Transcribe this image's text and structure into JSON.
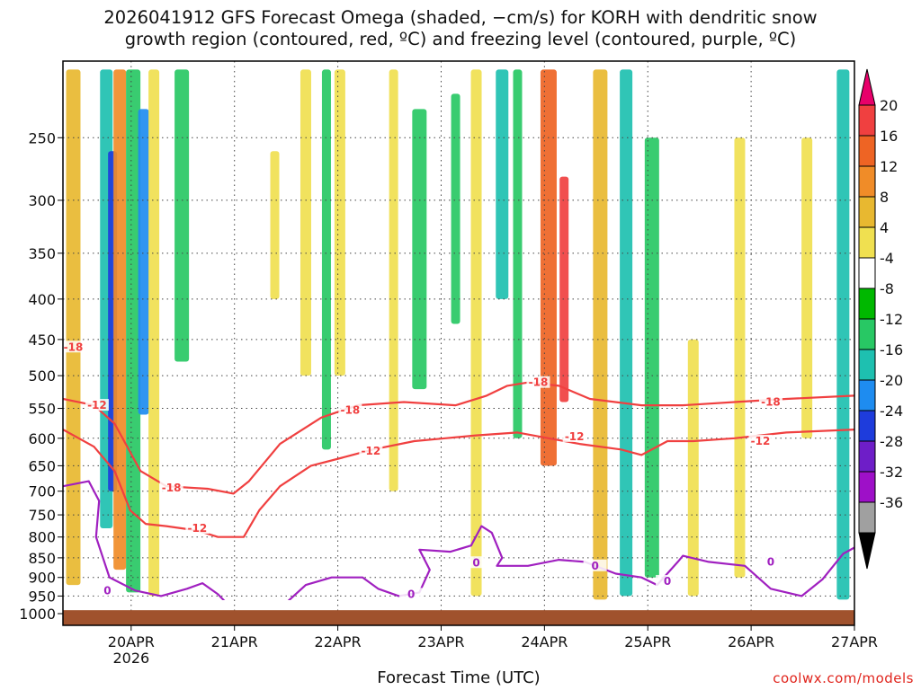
{
  "title_line1": "2026041912 GFS Forecast Omega (shaded, −cm/s) for KORH with dendritic snow",
  "title_line2": "growth region (contoured, red, ºC) and freezing level (contoured, purple, ºC)",
  "credit": "coolwx.com/models",
  "chart_data": {
    "type": "heatmap",
    "xlabel": "Forecast Time (UTC)",
    "ylabel": "",
    "x_ticks": [
      "20APR",
      "21APR",
      "22APR",
      "23APR",
      "24APR",
      "25APR",
      "26APR",
      "27APR"
    ],
    "x_tick_days": [
      0.66,
      1.66,
      2.66,
      3.66,
      4.66,
      5.66,
      6.66,
      7.66
    ],
    "x_sublabel": "2026",
    "xlim_days": [
      0,
      7.66
    ],
    "y_ticks": [
      250,
      300,
      350,
      400,
      450,
      500,
      550,
      600,
      650,
      700,
      750,
      800,
      850,
      900,
      950,
      1000
    ],
    "ylim_hpa": [
      200,
      1000
    ],
    "ground_level_hpa": 990,
    "colorbar": {
      "labels": [
        20,
        16,
        12,
        8,
        4,
        -4,
        -8,
        -12,
        -16,
        -20,
        -24,
        -28,
        -32,
        -36
      ],
      "colors": [
        "#e8006a",
        "#f04040",
        "#ee6424",
        "#f08c28",
        "#e8b830",
        "#f0e050",
        "#ffffff",
        "#00b800",
        "#28c864",
        "#1ec0b0",
        "#1e8cf0",
        "#1e3cdc",
        "#6e1ec8",
        "#9e10c8",
        "#a0a0a0",
        "#000000"
      ]
    },
    "omega_bands": [
      {
        "day": 0.1,
        "p_top": 205,
        "p_bot": 920,
        "value": 8
      },
      {
        "day": 0.42,
        "p_top": 205,
        "p_bot": 780,
        "value": -12
      },
      {
        "day": 0.48,
        "p_top": 260,
        "p_bot": 700,
        "value": -20
      },
      {
        "day": 0.55,
        "p_top": 205,
        "p_bot": 880,
        "value": 12
      },
      {
        "day": 0.68,
        "p_top": 205,
        "p_bot": 940,
        "value": -8
      },
      {
        "day": 0.78,
        "p_top": 230,
        "p_bot": 560,
        "value": -16
      },
      {
        "day": 0.88,
        "p_top": 205,
        "p_bot": 950,
        "value": 6
      },
      {
        "day": 1.15,
        "p_top": 205,
        "p_bot": 480,
        "value": -8
      },
      {
        "day": 2.05,
        "p_top": 260,
        "p_bot": 400,
        "value": 5
      },
      {
        "day": 2.35,
        "p_top": 205,
        "p_bot": 500,
        "value": 6
      },
      {
        "day": 2.55,
        "p_top": 205,
        "p_bot": 620,
        "value": -10
      },
      {
        "day": 2.68,
        "p_top": 205,
        "p_bot": 500,
        "value": 6
      },
      {
        "day": 3.2,
        "p_top": 205,
        "p_bot": 700,
        "value": 5
      },
      {
        "day": 3.45,
        "p_top": 230,
        "p_bot": 520,
        "value": -8
      },
      {
        "day": 3.8,
        "p_top": 220,
        "p_bot": 430,
        "value": -10
      },
      {
        "day": 4.0,
        "p_top": 205,
        "p_bot": 950,
        "value": 6
      },
      {
        "day": 4.25,
        "p_top": 205,
        "p_bot": 400,
        "value": -12
      },
      {
        "day": 4.4,
        "p_top": 205,
        "p_bot": 600,
        "value": -10
      },
      {
        "day": 4.7,
        "p_top": 205,
        "p_bot": 650,
        "value": 14
      },
      {
        "day": 4.85,
        "p_top": 280,
        "p_bot": 540,
        "value": 20
      },
      {
        "day": 5.2,
        "p_top": 205,
        "p_bot": 960,
        "value": 8
      },
      {
        "day": 5.45,
        "p_top": 205,
        "p_bot": 950,
        "value": -12
      },
      {
        "day": 5.7,
        "p_top": 250,
        "p_bot": 900,
        "value": -8
      },
      {
        "day": 6.1,
        "p_top": 450,
        "p_bot": 950,
        "value": 6
      },
      {
        "day": 6.55,
        "p_top": 250,
        "p_bot": 900,
        "value": 6
      },
      {
        "day": 7.2,
        "p_top": 250,
        "p_bot": 600,
        "value": 6
      },
      {
        "day": 7.55,
        "p_top": 205,
        "p_bot": 960,
        "value": -12
      }
    ],
    "contours": [
      {
        "name": "dgz-upper",
        "label": "-18",
        "color": "#f04040",
        "points": [
          [
            0,
            535
          ],
          [
            0.3,
            545
          ],
          [
            0.5,
            575
          ],
          [
            0.75,
            660
          ],
          [
            1.0,
            690
          ],
          [
            1.4,
            695
          ],
          [
            1.65,
            705
          ],
          [
            1.8,
            680
          ],
          [
            2.1,
            610
          ],
          [
            2.5,
            565
          ],
          [
            2.85,
            545
          ],
          [
            3.3,
            540
          ],
          [
            3.8,
            545
          ],
          [
            4.1,
            530
          ],
          [
            4.3,
            515
          ],
          [
            4.5,
            510
          ],
          [
            4.8,
            515
          ],
          [
            5.1,
            535
          ],
          [
            5.6,
            545
          ],
          [
            6.0,
            545
          ],
          [
            6.5,
            540
          ],
          [
            7.0,
            535
          ],
          [
            7.66,
            530
          ]
        ]
      },
      {
        "name": "dgz-lower",
        "label": "-12",
        "color": "#f04040",
        "points": [
          [
            0,
            585
          ],
          [
            0.3,
            615
          ],
          [
            0.5,
            660
          ],
          [
            0.65,
            740
          ],
          [
            0.8,
            770
          ],
          [
            1.0,
            775
          ],
          [
            1.3,
            785
          ],
          [
            1.5,
            800
          ],
          [
            1.75,
            800
          ],
          [
            1.9,
            740
          ],
          [
            2.1,
            690
          ],
          [
            2.4,
            650
          ],
          [
            2.7,
            635
          ],
          [
            3.0,
            620
          ],
          [
            3.4,
            605
          ],
          [
            3.7,
            600
          ],
          [
            4.0,
            595
          ],
          [
            4.4,
            590
          ],
          [
            4.7,
            600
          ],
          [
            5.0,
            610
          ],
          [
            5.4,
            620
          ],
          [
            5.6,
            630
          ],
          [
            5.85,
            605
          ],
          [
            6.1,
            605
          ],
          [
            6.5,
            600
          ],
          [
            7.0,
            590
          ],
          [
            7.66,
            585
          ]
        ]
      },
      {
        "name": "freezing-level",
        "label": "0",
        "color": "#a020c0",
        "points": [
          [
            0,
            690
          ],
          [
            0.25,
            680
          ],
          [
            0.35,
            720
          ],
          [
            0.32,
            800
          ],
          [
            0.45,
            900
          ],
          [
            0.7,
            935
          ],
          [
            0.95,
            950
          ],
          [
            1.2,
            930
          ],
          [
            1.35,
            915
          ],
          [
            1.5,
            945
          ],
          [
            1.65,
            990
          ],
          [
            2.1,
            985
          ],
          [
            2.35,
            920
          ],
          [
            2.6,
            900
          ],
          [
            2.9,
            900
          ],
          [
            3.05,
            930
          ],
          [
            3.25,
            950
          ],
          [
            3.45,
            940
          ],
          [
            3.55,
            880
          ],
          [
            3.45,
            830
          ],
          [
            3.75,
            835
          ],
          [
            3.95,
            820
          ],
          [
            4.05,
            775
          ],
          [
            4.15,
            790
          ],
          [
            4.25,
            850
          ],
          [
            4.2,
            870
          ],
          [
            4.5,
            870
          ],
          [
            4.8,
            855
          ],
          [
            5.05,
            860
          ],
          [
            5.35,
            890
          ],
          [
            5.6,
            900
          ],
          [
            5.75,
            920
          ],
          [
            5.95,
            860
          ],
          [
            6.0,
            845
          ],
          [
            6.25,
            860
          ],
          [
            6.6,
            870
          ],
          [
            6.85,
            930
          ],
          [
            7.15,
            950
          ],
          [
            7.35,
            905
          ],
          [
            7.55,
            840
          ],
          [
            7.66,
            825
          ]
        ]
      }
    ],
    "contour_labels": [
      {
        "text": "-18",
        "day": 0.1,
        "p": 460
      },
      {
        "text": "-12",
        "day": 0.33,
        "p": 545
      },
      {
        "text": "-18",
        "day": 1.05,
        "p": 693
      },
      {
        "text": "-12",
        "day": 1.3,
        "p": 780
      },
      {
        "text": "-18",
        "day": 2.78,
        "p": 553
      },
      {
        "text": "-12",
        "day": 2.98,
        "p": 623
      },
      {
        "text": "-18",
        "day": 4.6,
        "p": 510
      },
      {
        "text": "-12",
        "day": 4.95,
        "p": 597
      },
      {
        "text": "-18",
        "day": 6.85,
        "p": 540
      },
      {
        "text": "-12",
        "day": 6.75,
        "p": 605
      },
      {
        "text": "0",
        "day": 0.43,
        "p": 935
      },
      {
        "text": "0",
        "day": 3.37,
        "p": 945
      },
      {
        "text": "0",
        "day": 4.0,
        "p": 862
      },
      {
        "text": "0",
        "day": 5.15,
        "p": 870
      },
      {
        "text": "0",
        "day": 5.85,
        "p": 910
      },
      {
        "text": "0",
        "day": 6.85,
        "p": 860
      }
    ]
  }
}
